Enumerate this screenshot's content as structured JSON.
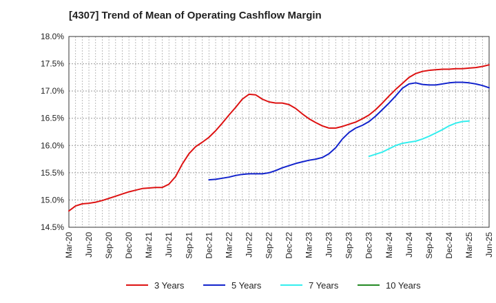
{
  "chart_data": {
    "type": "line",
    "title": "[4307]  Trend of Mean of Operating Cashflow Margin",
    "xlabel": "",
    "ylabel": "",
    "ylim": [
      14.5,
      18.0
    ],
    "y_ticks": [
      "14.5%",
      "15.0%",
      "15.5%",
      "16.0%",
      "16.5%",
      "17.0%",
      "17.5%",
      "18.0%"
    ],
    "x_ticks": [
      "Mar-20",
      "Jun-20",
      "Sep-20",
      "Dec-20",
      "Mar-21",
      "Jun-21",
      "Sep-21",
      "Dec-21",
      "Mar-22",
      "Jun-22",
      "Sep-22",
      "Dec-22",
      "Mar-23",
      "Jun-23",
      "Sep-23",
      "Dec-23",
      "Mar-24",
      "Jun-24",
      "Sep-24",
      "Dec-24",
      "Mar-25",
      "Jun-25"
    ],
    "x_unit": "month",
    "x_start": "Mar-20",
    "grid": true,
    "legend_position": "bottom",
    "series": [
      {
        "name": "3 Years",
        "color": "#dd1111",
        "start": "Mar-20",
        "values": [
          14.8,
          14.89,
          14.93,
          14.94,
          14.96,
          14.99,
          15.03,
          15.07,
          15.11,
          15.15,
          15.18,
          15.21,
          15.22,
          15.23,
          15.23,
          15.29,
          15.43,
          15.66,
          15.85,
          15.98,
          16.06,
          16.15,
          16.27,
          16.41,
          16.56,
          16.7,
          16.85,
          16.94,
          16.93,
          16.85,
          16.8,
          16.78,
          16.78,
          16.75,
          16.68,
          16.58,
          16.49,
          16.42,
          16.36,
          16.32,
          16.32,
          16.35,
          16.39,
          16.43,
          16.49,
          16.56,
          16.66,
          16.78,
          16.91,
          17.03,
          17.14,
          17.25,
          17.32,
          17.36,
          17.38,
          17.39,
          17.4,
          17.4,
          17.41,
          17.41,
          17.42,
          17.43,
          17.45,
          17.48
        ]
      },
      {
        "name": "5 Years",
        "color": "#1122cc",
        "start": "Dec-21",
        "values": [
          15.37,
          15.38,
          15.4,
          15.42,
          15.45,
          15.47,
          15.48,
          15.48,
          15.48,
          15.5,
          15.54,
          15.59,
          15.63,
          15.67,
          15.7,
          15.73,
          15.75,
          15.78,
          15.85,
          15.96,
          16.12,
          16.24,
          16.32,
          16.37,
          16.44,
          16.54,
          16.66,
          16.78,
          16.91,
          17.05,
          17.13,
          17.15,
          17.12,
          17.11,
          17.11,
          17.13,
          17.15,
          17.16,
          17.16,
          17.15,
          17.13,
          17.1,
          17.06
        ]
      },
      {
        "name": "7 Years",
        "color": "#33eeee",
        "start": "Dec-23",
        "values": [
          15.8,
          15.84,
          15.88,
          15.94,
          16.0,
          16.04,
          16.06,
          16.08,
          16.12,
          16.17,
          16.23,
          16.29,
          16.36,
          16.41,
          16.44,
          16.45
        ]
      },
      {
        "name": "10 Years",
        "color": "#228822",
        "start": "",
        "values": []
      }
    ]
  }
}
